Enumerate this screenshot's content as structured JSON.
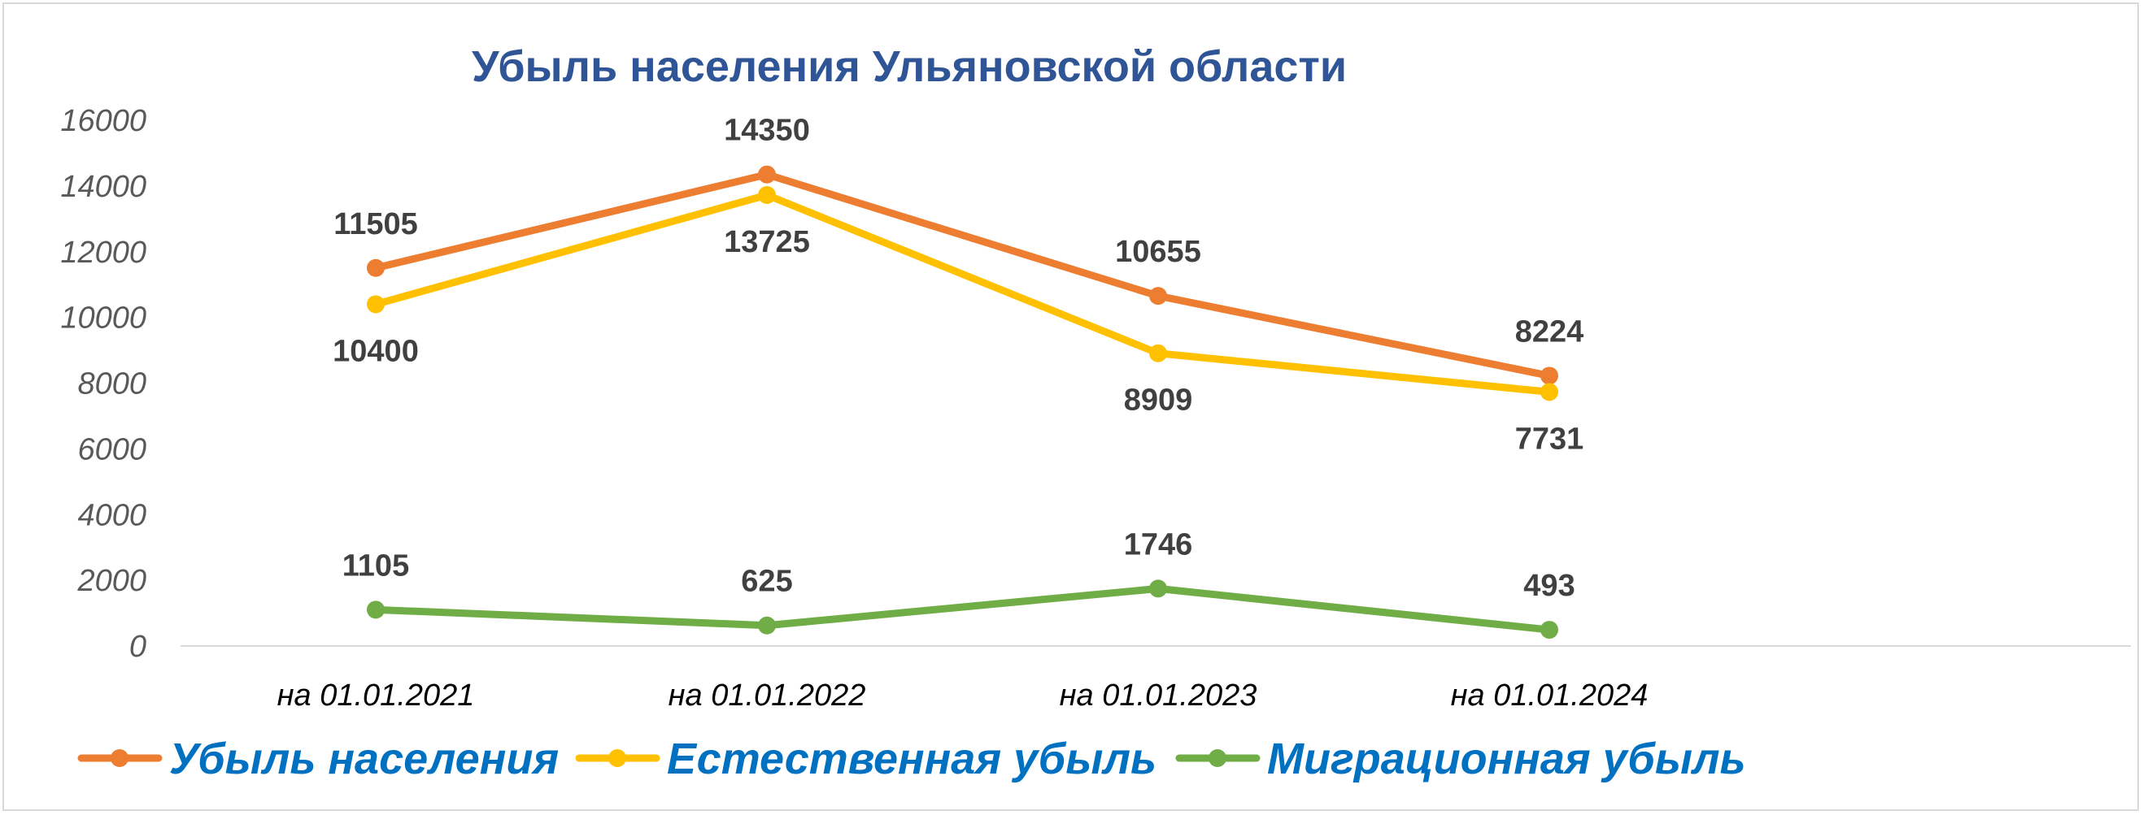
{
  "chart_data": {
    "type": "line",
    "title": "Убыль населения Ульяновской области",
    "categories": [
      "на 01.01.2021",
      "на 01.01.2022",
      "на 01.01.2023",
      "на 01.01.2024"
    ],
    "ylim": [
      0,
      16000
    ],
    "yticks": [
      0,
      2000,
      4000,
      6000,
      8000,
      10000,
      12000,
      14000,
      16000
    ],
    "grid": false,
    "legend_position": "bottom",
    "series": [
      {
        "name": "Убыль населения",
        "color": "#ED7D31",
        "values": [
          11505,
          14350,
          10655,
          8224
        ],
        "label_positions": [
          "above",
          "above",
          "above",
          "above"
        ]
      },
      {
        "name": "Естественная убыль",
        "color": "#FFC000",
        "values": [
          10400,
          13725,
          8909,
          7731
        ],
        "label_positions": [
          "below",
          "below",
          "below",
          "below"
        ]
      },
      {
        "name": "Миграционная убыль",
        "color": "#70AD47",
        "values": [
          1105,
          625,
          1746,
          493
        ],
        "label_positions": [
          "above",
          "above",
          "above",
          "above"
        ]
      }
    ]
  },
  "colors": {
    "title": "#2F5597",
    "legend_text": "#0070C0",
    "axis_line": "#d9d9d9"
  }
}
